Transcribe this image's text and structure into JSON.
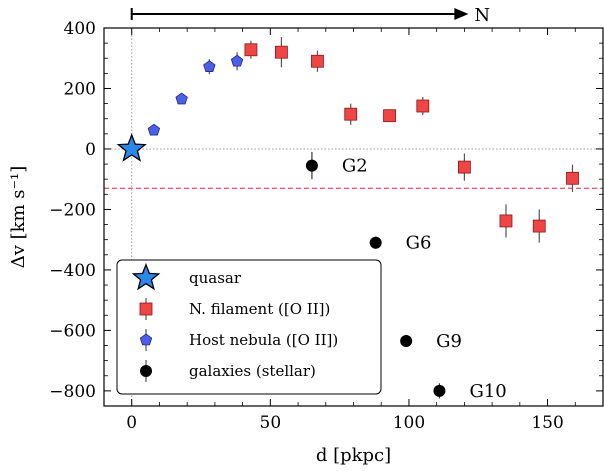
{
  "chart_data": {
    "type": "scatter",
    "title": "",
    "xlabel": "d [pkpc]",
    "ylabel": "Δv [km s⁻¹]",
    "xlim": [
      -10,
      170
    ],
    "ylim": [
      -850,
      400
    ],
    "xticks": [
      0,
      50,
      100,
      150
    ],
    "yticks": [
      400,
      200,
      0,
      -200,
      -400,
      -600,
      -800
    ],
    "grid": false,
    "legend_position": "lower-left",
    "reference_lines": [
      {
        "orientation": "vertical",
        "value": 0,
        "style": "dotted",
        "color": "#999999"
      },
      {
        "orientation": "horizontal",
        "value": 0,
        "style": "dotted",
        "color": "#999999"
      },
      {
        "orientation": "horizontal",
        "value": -130,
        "style": "dashed",
        "color": "#e8273b"
      }
    ],
    "arrow": {
      "label": "N",
      "x_start": 0,
      "x_end": 120
    },
    "series": [
      {
        "name": "quasar",
        "marker": "star",
        "color": "#2b87e8",
        "points": [
          {
            "x": 0,
            "y": 0
          }
        ]
      },
      {
        "name": "N. filament ([O II])",
        "marker": "square",
        "color": "#f04545",
        "points": [
          {
            "x": 43,
            "y": 328,
            "err": 30
          },
          {
            "x": 54,
            "y": 320,
            "err": 50
          },
          {
            "x": 67,
            "y": 290,
            "err": 35
          },
          {
            "x": 79,
            "y": 115,
            "err": 35
          },
          {
            "x": 93,
            "y": 110,
            "err": 20
          },
          {
            "x": 105,
            "y": 142,
            "err": 30
          },
          {
            "x": 120,
            "y": -60,
            "err": 45
          },
          {
            "x": 135,
            "y": -238,
            "err": 55
          },
          {
            "x": 147,
            "y": -255,
            "err": 55
          },
          {
            "x": 159,
            "y": -97,
            "err": 45
          }
        ]
      },
      {
        "name": "Host nebula ([O II])",
        "marker": "pentagon",
        "color": "#4d5fe6",
        "points": [
          {
            "x": 8,
            "y": 62,
            "err": 10
          },
          {
            "x": 18,
            "y": 165,
            "err": 12
          },
          {
            "x": 28,
            "y": 272,
            "err": 25
          },
          {
            "x": 38,
            "y": 290,
            "err": 30
          }
        ]
      },
      {
        "name": "galaxies (stellar)",
        "marker": "circle",
        "color": "#000000",
        "points": [
          {
            "x": 65,
            "y": -55,
            "err": 45,
            "label": "G2"
          },
          {
            "x": 88,
            "y": -310,
            "err": 20,
            "label": "G6"
          },
          {
            "x": 99,
            "y": -635,
            "err": 20,
            "label": "G9"
          },
          {
            "x": 111,
            "y": -800,
            "err": 25,
            "label": "G10"
          }
        ]
      }
    ]
  }
}
